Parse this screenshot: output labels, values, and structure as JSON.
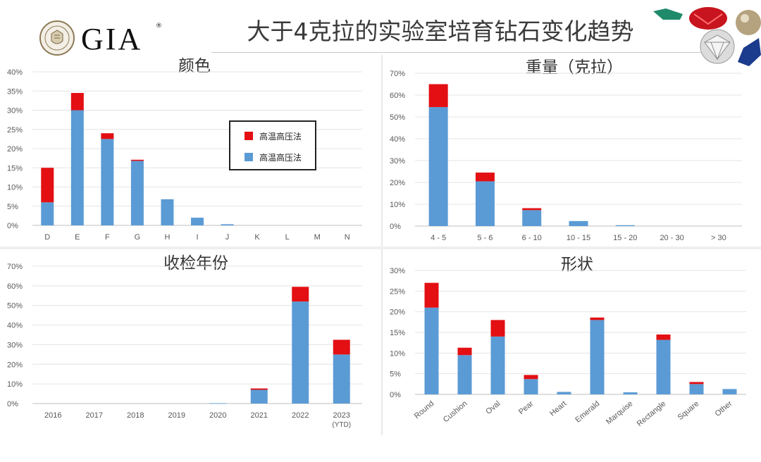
{
  "header": {
    "logo_text": "GIA",
    "logo_mark": "®",
    "title": "大于4克拉的实验室培育钻石变化趋势",
    "gem_icons": [
      "emerald-gem-icon",
      "ruby-gem-icon",
      "pearl-icon",
      "diamond-icon",
      "sapphire-gem-icon"
    ]
  },
  "colors": {
    "series_top": "#e30f13",
    "series_bottom": "#5b9bd5",
    "axis": "#bfbfbf",
    "grid": "#e4e4e4"
  },
  "legend": {
    "items": [
      "高温高压法",
      "高温高压法"
    ]
  },
  "chart_data": [
    {
      "id": "color",
      "type": "bar",
      "stacked": true,
      "title": "颜色",
      "categories": [
        "D",
        "E",
        "F",
        "G",
        "H",
        "I",
        "J",
        "K",
        "L",
        "M",
        "N"
      ],
      "series": [
        {
          "name": "高温高压法",
          "color": "#5b9bd5",
          "values": [
            6,
            30,
            22.5,
            16.8,
            6.8,
            2,
            0.3,
            0,
            0,
            0,
            0
          ]
        },
        {
          "name": "高温高压法",
          "color": "#e30f13",
          "values": [
            9,
            4.5,
            1.5,
            0.3,
            0,
            0,
            0,
            0,
            0,
            0,
            0
          ]
        }
      ],
      "yticks": [
        "0%",
        "5%",
        "10%",
        "15%",
        "20%",
        "25%",
        "30%",
        "35%",
        "40%"
      ],
      "ylim": [
        0,
        40
      ],
      "legend_position": "inside-right"
    },
    {
      "id": "weight",
      "type": "bar",
      "stacked": true,
      "title": "重量（克拉）",
      "categories": [
        "4 - 5",
        "5 - 6",
        "6 - 10",
        "10 - 15",
        "15 - 20",
        "20 - 30",
        "> 30"
      ],
      "series": [
        {
          "color": "#5b9bd5",
          "values": [
            54.5,
            20.5,
            7.3,
            2.3,
            0.4,
            0,
            0
          ]
        },
        {
          "color": "#e30f13",
          "values": [
            10.5,
            4.0,
            0.9,
            0,
            0,
            0,
            0
          ]
        }
      ],
      "yticks": [
        "0%",
        "10%",
        "20%",
        "30%",
        "40%",
        "50%",
        "60%",
        "70%"
      ],
      "ylim": [
        0,
        70
      ]
    },
    {
      "id": "year",
      "type": "bar",
      "stacked": true,
      "title": "收检年份",
      "categories": [
        "2016",
        "2017",
        "2018",
        "2019",
        "2020",
        "2021",
        "2022",
        "2023"
      ],
      "category_notes": [
        "",
        "",
        "",
        "",
        "",
        "",
        "",
        "(YTD)"
      ],
      "series": [
        {
          "color": "#5b9bd5",
          "values": [
            0,
            0,
            0,
            0,
            0.2,
            7,
            52,
            25
          ]
        },
        {
          "color": "#e30f13",
          "values": [
            0,
            0,
            0,
            0,
            0,
            0.7,
            7.5,
            7.5
          ]
        }
      ],
      "yticks": [
        "0%",
        "10%",
        "20%",
        "30%",
        "40%",
        "50%",
        "60%",
        "70%"
      ],
      "ylim": [
        0,
        70
      ]
    },
    {
      "id": "shape",
      "type": "bar",
      "stacked": true,
      "title": "形状",
      "categories": [
        "Round",
        "Cushion",
        "Oval",
        "Pear",
        "Heart",
        "Emerald",
        "Marquise",
        "Rectangle",
        "Square",
        "Other"
      ],
      "series": [
        {
          "color": "#5b9bd5",
          "values": [
            21,
            9.5,
            14,
            3.7,
            0.6,
            18,
            0.5,
            13.2,
            2.5,
            1.3
          ]
        },
        {
          "color": "#e30f13",
          "values": [
            6,
            1.8,
            4,
            1.0,
            0,
            0.6,
            0,
            1.3,
            0.5,
            0
          ]
        }
      ],
      "yticks": [
        "0%",
        "5%",
        "10%",
        "15%",
        "20%",
        "25%",
        "30%"
      ],
      "ylim": [
        0,
        30
      ],
      "rotated_labels": true
    }
  ]
}
